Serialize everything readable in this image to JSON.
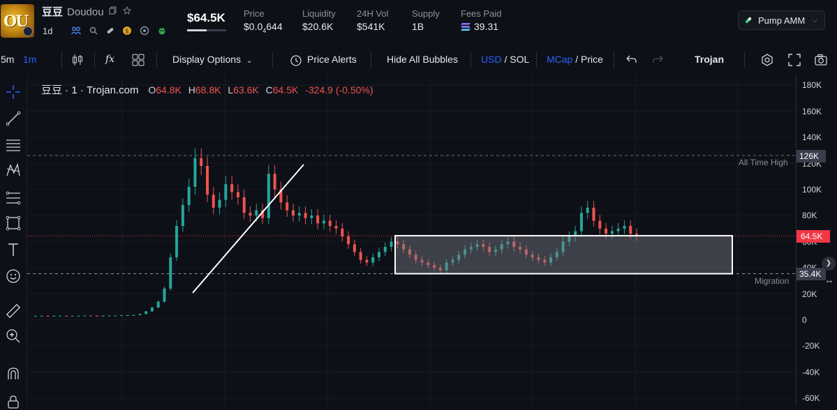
{
  "token": {
    "avatar_text": "OU",
    "name_cn": "豆豆",
    "name": "Doudou",
    "period": "1d",
    "big_price": "$64.5K"
  },
  "stats": [
    {
      "label": "Price",
      "value_main": "$0.0",
      "value_sub": "4",
      "value_tail": "644"
    },
    {
      "label": "Liquidity",
      "value": "$20.6K"
    },
    {
      "label": "24H Vol",
      "value": "$541K"
    },
    {
      "label": "Supply",
      "value": "1B"
    },
    {
      "label": "Fees Paid",
      "value": "39.31"
    }
  ],
  "amm": {
    "label": "Pump AMM"
  },
  "toolbar": {
    "interval_5m": "5m",
    "interval_1m": "1m",
    "fx": "fx",
    "display_options": "Display Options",
    "price_alerts": "Price Alerts",
    "hide_bubbles": "Hide All Bubbles",
    "usd": "USD",
    "slash1": " / ",
    "sol": "SOL",
    "mcap": "MCap",
    "slash2": " / ",
    "price": "Price",
    "trojan": "Trojan"
  },
  "legend": {
    "symbol": "豆豆 · 1 · Trojan.com",
    "o_label": "O",
    "o": "64.8K",
    "h_label": "H",
    "h": "68.8K",
    "l_label": "L",
    "l": "63.6K",
    "c_label": "C",
    "c": "64.5K",
    "change": "-324.9 (-0.50%)"
  },
  "axis": {
    "ticks": [
      "180K",
      "160K",
      "140K",
      "120K",
      "100K",
      "80K",
      "60K",
      "40K",
      "20K",
      "0",
      "-20K",
      "-40K",
      "-60K"
    ],
    "ath_tag": "126K",
    "current_tag": "64.5K",
    "migration_tag": "35.4K"
  },
  "lines": {
    "ath_label": "All Time High",
    "migration_label": "Migration"
  },
  "colors": {
    "up": "#26a69a",
    "down": "#ef5350",
    "accent": "#2962ff",
    "current": "#f23645"
  },
  "chart_data": {
    "type": "candlestick",
    "unit": "market cap (USD)",
    "ylim": [
      -60000,
      180000
    ],
    "all_time_high": 126000,
    "migration": 35400,
    "current": 64500,
    "annotations": [
      {
        "type": "trend-line",
        "desc": "upward white line before pump"
      },
      {
        "type": "rectangle",
        "y_range": [
          35400,
          64500
        ],
        "desc": "white box consolidation zone"
      }
    ],
    "close_series": [
      3000,
      3100,
      3000,
      3100,
      3200,
      3100,
      3100,
      3200,
      3300,
      3200,
      3100,
      3200,
      3300,
      3400,
      3500,
      3600,
      3700,
      4500,
      6500,
      9500,
      14000,
      24000,
      48000,
      72000,
      88000,
      102000,
      124000,
      118000,
      96000,
      86000,
      92000,
      104000,
      98000,
      94000,
      82000,
      80000,
      84000,
      78000,
      112000,
      100000,
      90000,
      84000,
      80000,
      82000,
      78000,
      80000,
      74000,
      76000,
      72000,
      70000,
      64000,
      58000,
      52000,
      46000,
      44000,
      48000,
      52000,
      56000,
      60000,
      58000,
      54000,
      50000,
      46000,
      44000,
      42000,
      40000,
      38000,
      44000,
      46000,
      50000,
      54000,
      56000,
      58000,
      56000,
      52000,
      54000,
      58000,
      60000,
      56000,
      54000,
      50000,
      48000,
      46000,
      44000,
      48000,
      52000,
      60000,
      64000,
      68000,
      82000,
      86000,
      76000,
      70000,
      66000,
      68000,
      70000,
      72000,
      66000,
      64500
    ]
  }
}
